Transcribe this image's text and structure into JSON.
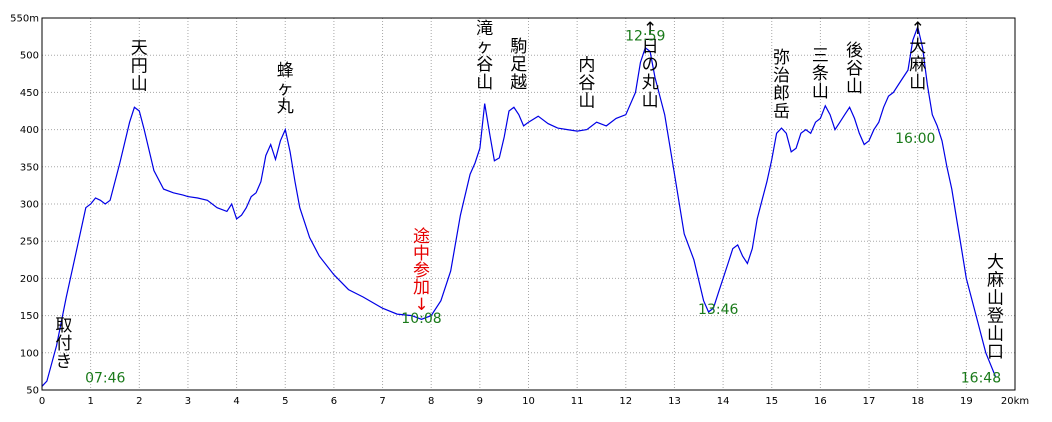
{
  "chart_data": {
    "type": "line",
    "title": "",
    "xlabel": "",
    "ylabel": "",
    "x_unit": "km",
    "y_unit": "m",
    "xlim": [
      0,
      20
    ],
    "ylim": [
      50,
      550
    ],
    "x_ticks": [
      "0",
      "1",
      "2",
      "3",
      "4",
      "5",
      "6",
      "7",
      "8",
      "9",
      "10",
      "11",
      "12",
      "13",
      "14",
      "15",
      "16",
      "17",
      "18",
      "19",
      "20km"
    ],
    "y_ticks": [
      "50",
      "100",
      "150",
      "200",
      "250",
      "300",
      "350",
      "400",
      "450",
      "500",
      "550m"
    ],
    "grid": true,
    "colors": {
      "line": "#0000e6",
      "time_label": "#1a7a1a",
      "note": "#e60000"
    },
    "series": [
      {
        "x": [
          0,
          0.1,
          0.3,
          0.5,
          0.7,
          0.9,
          1.0,
          1.1,
          1.2,
          1.3,
          1.4,
          1.6,
          1.8,
          1.9,
          2.0,
          2.1,
          2.3,
          2.5,
          2.7,
          2.9,
          3.0,
          3.2,
          3.4,
          3.6,
          3.8,
          3.9,
          4.0,
          4.1,
          4.2,
          4.3,
          4.4,
          4.5,
          4.6,
          4.7,
          4.8,
          4.9,
          5.0,
          5.1,
          5.2,
          5.3,
          5.4,
          5.5,
          5.7,
          6.0,
          6.3,
          6.6,
          7.0,
          7.3,
          7.6,
          7.8,
          8.0,
          8.2,
          8.4,
          8.6,
          8.8,
          8.9,
          9.0,
          9.1,
          9.2,
          9.3,
          9.4,
          9.5,
          9.6,
          9.7,
          9.8,
          9.9,
          10.0,
          10.2,
          10.4,
          10.6,
          10.8,
          11.0,
          11.2,
          11.4,
          11.6,
          11.8,
          12.0,
          12.2,
          12.3,
          12.4,
          12.5,
          12.6,
          12.8,
          13.0,
          13.2,
          13.4,
          13.6,
          13.7,
          13.8,
          13.9,
          14.0,
          14.1,
          14.2,
          14.3,
          14.4,
          14.5,
          14.6,
          14.7,
          14.8,
          14.9,
          15.0,
          15.1,
          15.2,
          15.3,
          15.4,
          15.5,
          15.6,
          15.7,
          15.8,
          15.9,
          16.0,
          16.1,
          16.2,
          16.3,
          16.4,
          16.5,
          16.6,
          16.7,
          16.8,
          16.9,
          17.0,
          17.1,
          17.2,
          17.3,
          17.4,
          17.5,
          17.6,
          17.7,
          17.8,
          17.9,
          18.0,
          18.1,
          18.2,
          18.3,
          18.4,
          18.5,
          18.6,
          18.7,
          18.8,
          18.9,
          19.0,
          19.2,
          19.4,
          19.6
        ],
        "y": [
          55,
          62,
          110,
          175,
          235,
          295,
          300,
          308,
          305,
          300,
          305,
          355,
          410,
          430,
          425,
          400,
          345,
          320,
          315,
          312,
          310,
          308,
          305,
          295,
          290,
          300,
          280,
          285,
          295,
          310,
          315,
          330,
          365,
          380,
          360,
          385,
          400,
          370,
          330,
          295,
          275,
          255,
          230,
          205,
          185,
          175,
          160,
          152,
          150,
          145,
          150,
          170,
          210,
          285,
          340,
          355,
          375,
          435,
          395,
          358,
          362,
          390,
          425,
          430,
          420,
          405,
          410,
          418,
          408,
          402,
          400,
          398,
          400,
          410,
          405,
          415,
          420,
          450,
          490,
          510,
          505,
          470,
          420,
          340,
          260,
          225,
          170,
          155,
          160,
          180,
          200,
          220,
          240,
          245,
          230,
          220,
          240,
          280,
          305,
          330,
          360,
          395,
          402,
          395,
          370,
          375,
          395,
          400,
          395,
          410,
          415,
          432,
          420,
          400,
          410,
          420,
          430,
          415,
          395,
          380,
          385,
          400,
          410,
          430,
          445,
          450,
          460,
          470,
          480,
          520,
          538,
          510,
          460,
          420,
          405,
          385,
          350,
          320,
          280,
          240,
          200,
          150,
          100,
          68
        ]
      }
    ],
    "peak_labels": [
      {
        "text": "天円山",
        "x": 2.0,
        "y": 435
      },
      {
        "text": "蜂ヶ丸",
        "x": 5.0,
        "y": 405
      },
      {
        "text": "滝ヶ谷山",
        "x": 9.1,
        "y": 440
      },
      {
        "text": "駒足越",
        "x": 9.8,
        "y": 437
      },
      {
        "text": "内谷山",
        "x": 11.2,
        "y": 412
      },
      {
        "text": "↑日の丸山",
        "x": 12.5,
        "y": 520
      },
      {
        "text": "弥治郎岳",
        "x": 15.2,
        "y": 398
      },
      {
        "text": "三条山",
        "x": 16.0,
        "y": 425
      },
      {
        "text": "後谷山",
        "x": 16.7,
        "y": 432
      },
      {
        "text": "↑大麻山",
        "x": 18.0,
        "y": 538
      },
      {
        "text": "大麻山登山口",
        "x": 19.6,
        "y": 75
      },
      {
        "text": "取付き",
        "x": 0.45,
        "y": 62
      }
    ],
    "note_labels": [
      {
        "text": "途中参加↓",
        "x": 7.8,
        "y": 152
      }
    ],
    "time_labels": [
      {
        "text": "07:46",
        "x": 1.3,
        "y": 60
      },
      {
        "text": "10:08",
        "x": 7.8,
        "y": 140
      },
      {
        "text": "12:59",
        "x": 12.4,
        "y": 520
      },
      {
        "text": "13:46",
        "x": 13.9,
        "y": 152
      },
      {
        "text": "16:00",
        "x": 17.95,
        "y": 382
      },
      {
        "text": "16:48",
        "x": 19.3,
        "y": 60
      }
    ]
  }
}
